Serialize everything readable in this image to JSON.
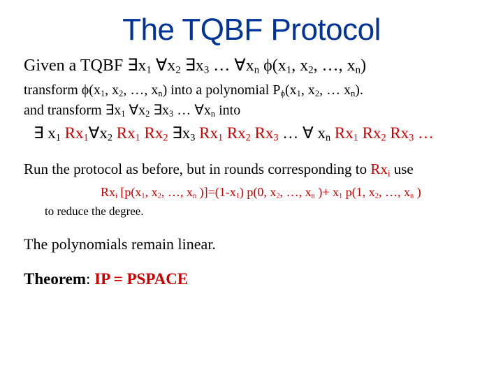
{
  "colors": {
    "title": "#003399",
    "body": "#000000",
    "highlight": "#cc0000",
    "background": "#ffffff"
  },
  "fonts": {
    "title_family": "Arial Narrow",
    "title_size_pt": 44,
    "body_family": "Comic Sans MS",
    "body_size_pt": 22
  },
  "title": "The TQBF Protocol",
  "sym": {
    "exists": "∃",
    "forall": "∀",
    "phi": "ϕ",
    "ell": "…"
  },
  "txt": {
    "given": "Given a TQBF ",
    "transform1a": "transform ",
    "transform1b": " into a polynomial P",
    "transform1c": "(x",
    "transform2": "and  transform  ",
    "into": " into",
    "run": "Run the protocol as before, but in rounds corresponding to ",
    "use": " use",
    "reduce": "to reduce the degree.",
    "remain": "The polynomials remain linear.",
    "theorem_label": "Theorem",
    "theorem_stmt": "IP = PSPACE",
    "R": "R",
    "x": "x",
    "phi_args_open": "(x",
    "comma_x": ", x",
    "phi_args_close": ")",
    "dots_xn": ", …, x",
    "dot": ".",
    "colon": ": ",
    "space": " ",
    "p_open": " [p(x",
    "p_mid": " )]=(1-x",
    "p_mid2": ") p(0, x",
    "p_mid3": " )+ x",
    "p_mid4": " p(1, x",
    "p_close": " )",
    "dots": " … "
  },
  "s": {
    "1": "1",
    "2": "2",
    "3": "3",
    "n": "n",
    "i": "i"
  }
}
